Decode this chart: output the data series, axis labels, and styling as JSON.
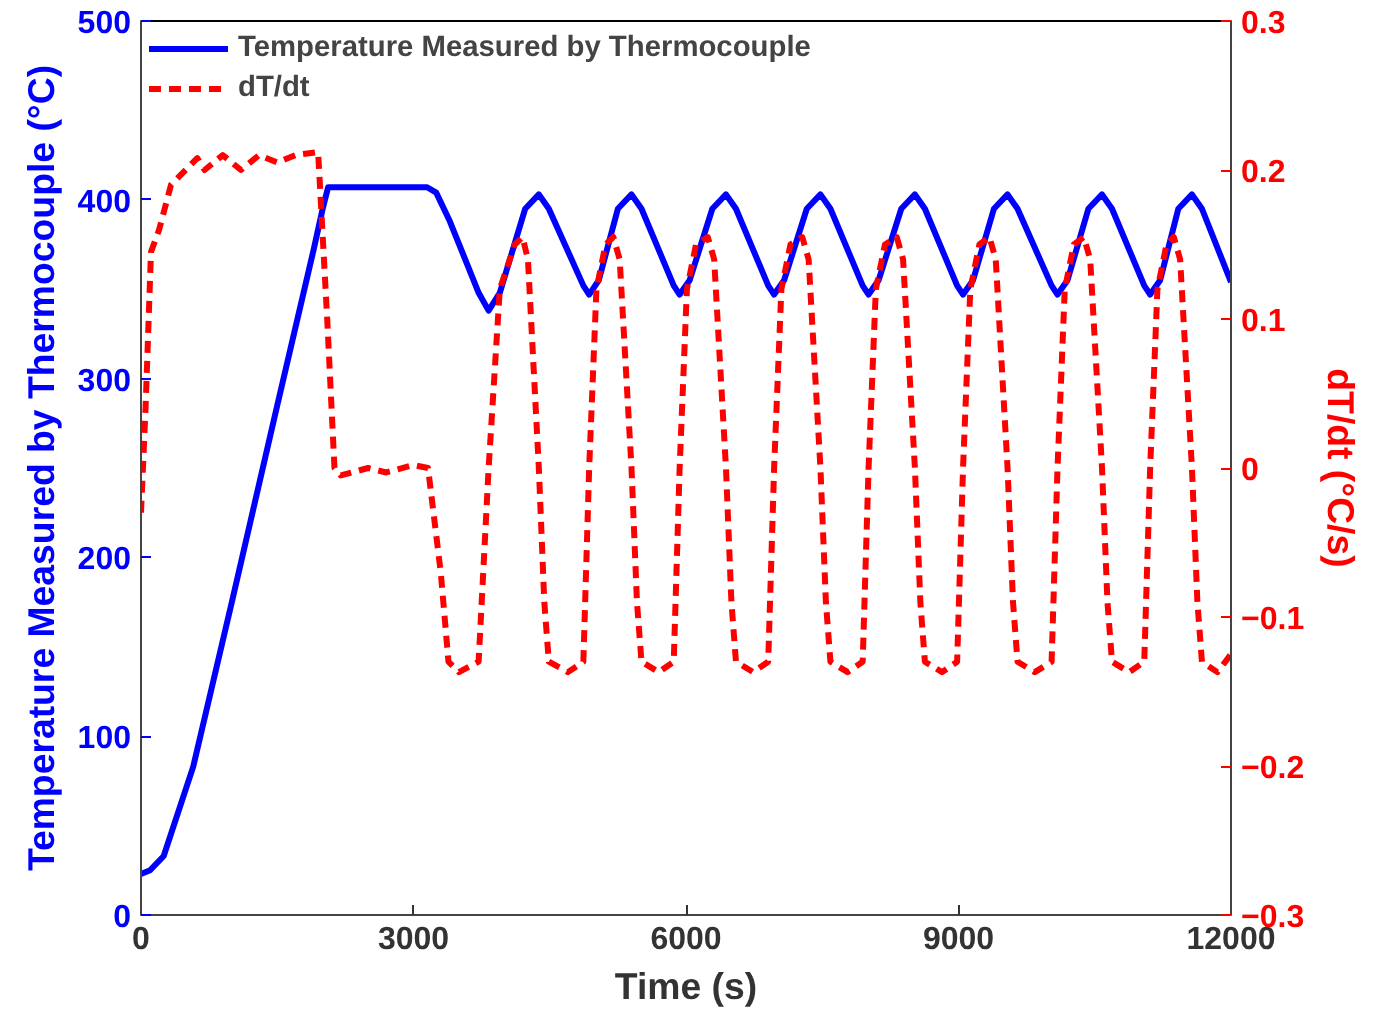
{
  "chart_data": {
    "type": "line",
    "xlabel": "Time (s)",
    "ylabel": "Temperature Measured by Thermocouple (°C)",
    "y2label": "dT/dt (°C/s)",
    "xlim": [
      0,
      12000
    ],
    "xticks": [
      0,
      3000,
      6000,
      9000,
      12000
    ],
    "ylim": [
      0,
      500
    ],
    "yticks": [
      0,
      100,
      200,
      300,
      400,
      500
    ],
    "y2lim": [
      -0.3,
      0.3
    ],
    "y2ticks": [
      -0.3,
      -0.2,
      -0.1,
      0,
      0.1,
      0.2,
      0.3
    ],
    "legend": "top left",
    "grid": false,
    "series": [
      {
        "name": "Temperature Measured by Thermocouple",
        "color": "#0000ff",
        "line_style": "solid",
        "x": [
          0,
          100,
          250,
          575,
          1000,
          1500,
          1900,
          2000,
          2060,
          2200,
          3150,
          3250,
          3400,
          3717,
          3827,
          3950,
          4230,
          4380,
          4490,
          4870,
          4934,
          5040,
          5250,
          5400,
          5510,
          5865,
          5930,
          6040,
          6290,
          6440,
          6550,
          6905,
          6970,
          7080,
          7330,
          7480,
          7590,
          7945,
          8010,
          8120,
          8370,
          8520,
          8630,
          8985,
          9050,
          9160,
          9390,
          9540,
          9650,
          10025,
          10090,
          10200,
          10430,
          10580,
          10690,
          11045,
          11110,
          11220,
          11420,
          11570,
          11680,
          12000
        ],
        "values": [
          23,
          25,
          33,
          83,
          175,
          285,
          372,
          395,
          407,
          407,
          407,
          404,
          388,
          348,
          338,
          348,
          395,
          403,
          395,
          352,
          347,
          355,
          395,
          403,
          395,
          352,
          347,
          355,
          395,
          403,
          395,
          352,
          347,
          355,
          395,
          403,
          395,
          352,
          347,
          355,
          395,
          403,
          395,
          352,
          347,
          355,
          395,
          403,
          395,
          352,
          347,
          355,
          395,
          403,
          395,
          352,
          347,
          355,
          395,
          403,
          395,
          354
        ]
      },
      {
        "name": "dT/dt",
        "color": "#ff0000",
        "line_style": "dashed",
        "axis": "y2",
        "x": [
          0,
          50,
          110,
          200,
          330,
          620,
          700,
          900,
          1100,
          1300,
          1500,
          1700,
          1950,
          2050,
          2130,
          2200,
          2500,
          2700,
          3000,
          3160,
          3300,
          3385,
          3500,
          3717,
          3827,
          3950,
          4115,
          4200,
          4260,
          4380,
          4440,
          4490,
          4700,
          4870,
          4934,
          5014,
          5114,
          5200,
          5270,
          5400,
          5460,
          5510,
          5700,
          5865,
          5930,
          6010,
          6110,
          6240,
          6310,
          6440,
          6500,
          6550,
          6740,
          6905,
          6970,
          7050,
          7150,
          7280,
          7350,
          7480,
          7540,
          7590,
          7780,
          7945,
          8010,
          8090,
          8190,
          8320,
          8390,
          8520,
          8580,
          8630,
          8820,
          8985,
          9050,
          9130,
          9230,
          9340,
          9410,
          9540,
          9600,
          9650,
          9840,
          10025,
          10090,
          10170,
          10270,
          10380,
          10450,
          10580,
          10640,
          10690,
          10880,
          11045,
          11110,
          11190,
          11290,
          11370,
          11440,
          11570,
          11630,
          11680,
          11850,
          12000
        ],
        "values": [
          -0.03,
          0.04,
          0.145,
          0.16,
          0.19,
          0.208,
          0.2,
          0.21,
          0.2,
          0.21,
          0.205,
          0.21,
          0.212,
          0.1,
          0.0,
          -0.005,
          0.0,
          -0.003,
          0.002,
          0.0,
          -0.07,
          -0.13,
          -0.137,
          -0.13,
          0.0,
          0.12,
          0.15,
          0.155,
          0.14,
          0.0,
          -0.09,
          -0.13,
          -0.137,
          -0.13,
          0,
          0.12,
          0.15,
          0.155,
          0.14,
          0,
          -0.09,
          -0.13,
          -0.137,
          -0.13,
          0,
          0.12,
          0.15,
          0.155,
          0.14,
          0,
          -0.09,
          -0.13,
          -0.137,
          -0.13,
          0,
          0.12,
          0.15,
          0.155,
          0.14,
          0,
          -0.09,
          -0.13,
          -0.137,
          -0.13,
          0,
          0.12,
          0.15,
          0.155,
          0.14,
          0,
          -0.09,
          -0.13,
          -0.137,
          -0.13,
          0,
          0.12,
          0.15,
          0.155,
          0.14,
          0,
          -0.09,
          -0.13,
          -0.137,
          -0.13,
          0,
          0.12,
          0.15,
          0.155,
          0.14,
          0,
          -0.09,
          -0.13,
          -0.137,
          -0.13,
          0,
          0.12,
          0.15,
          0.155,
          0.14,
          0,
          -0.09,
          -0.13,
          -0.137,
          -0.125
        ]
      }
    ]
  }
}
